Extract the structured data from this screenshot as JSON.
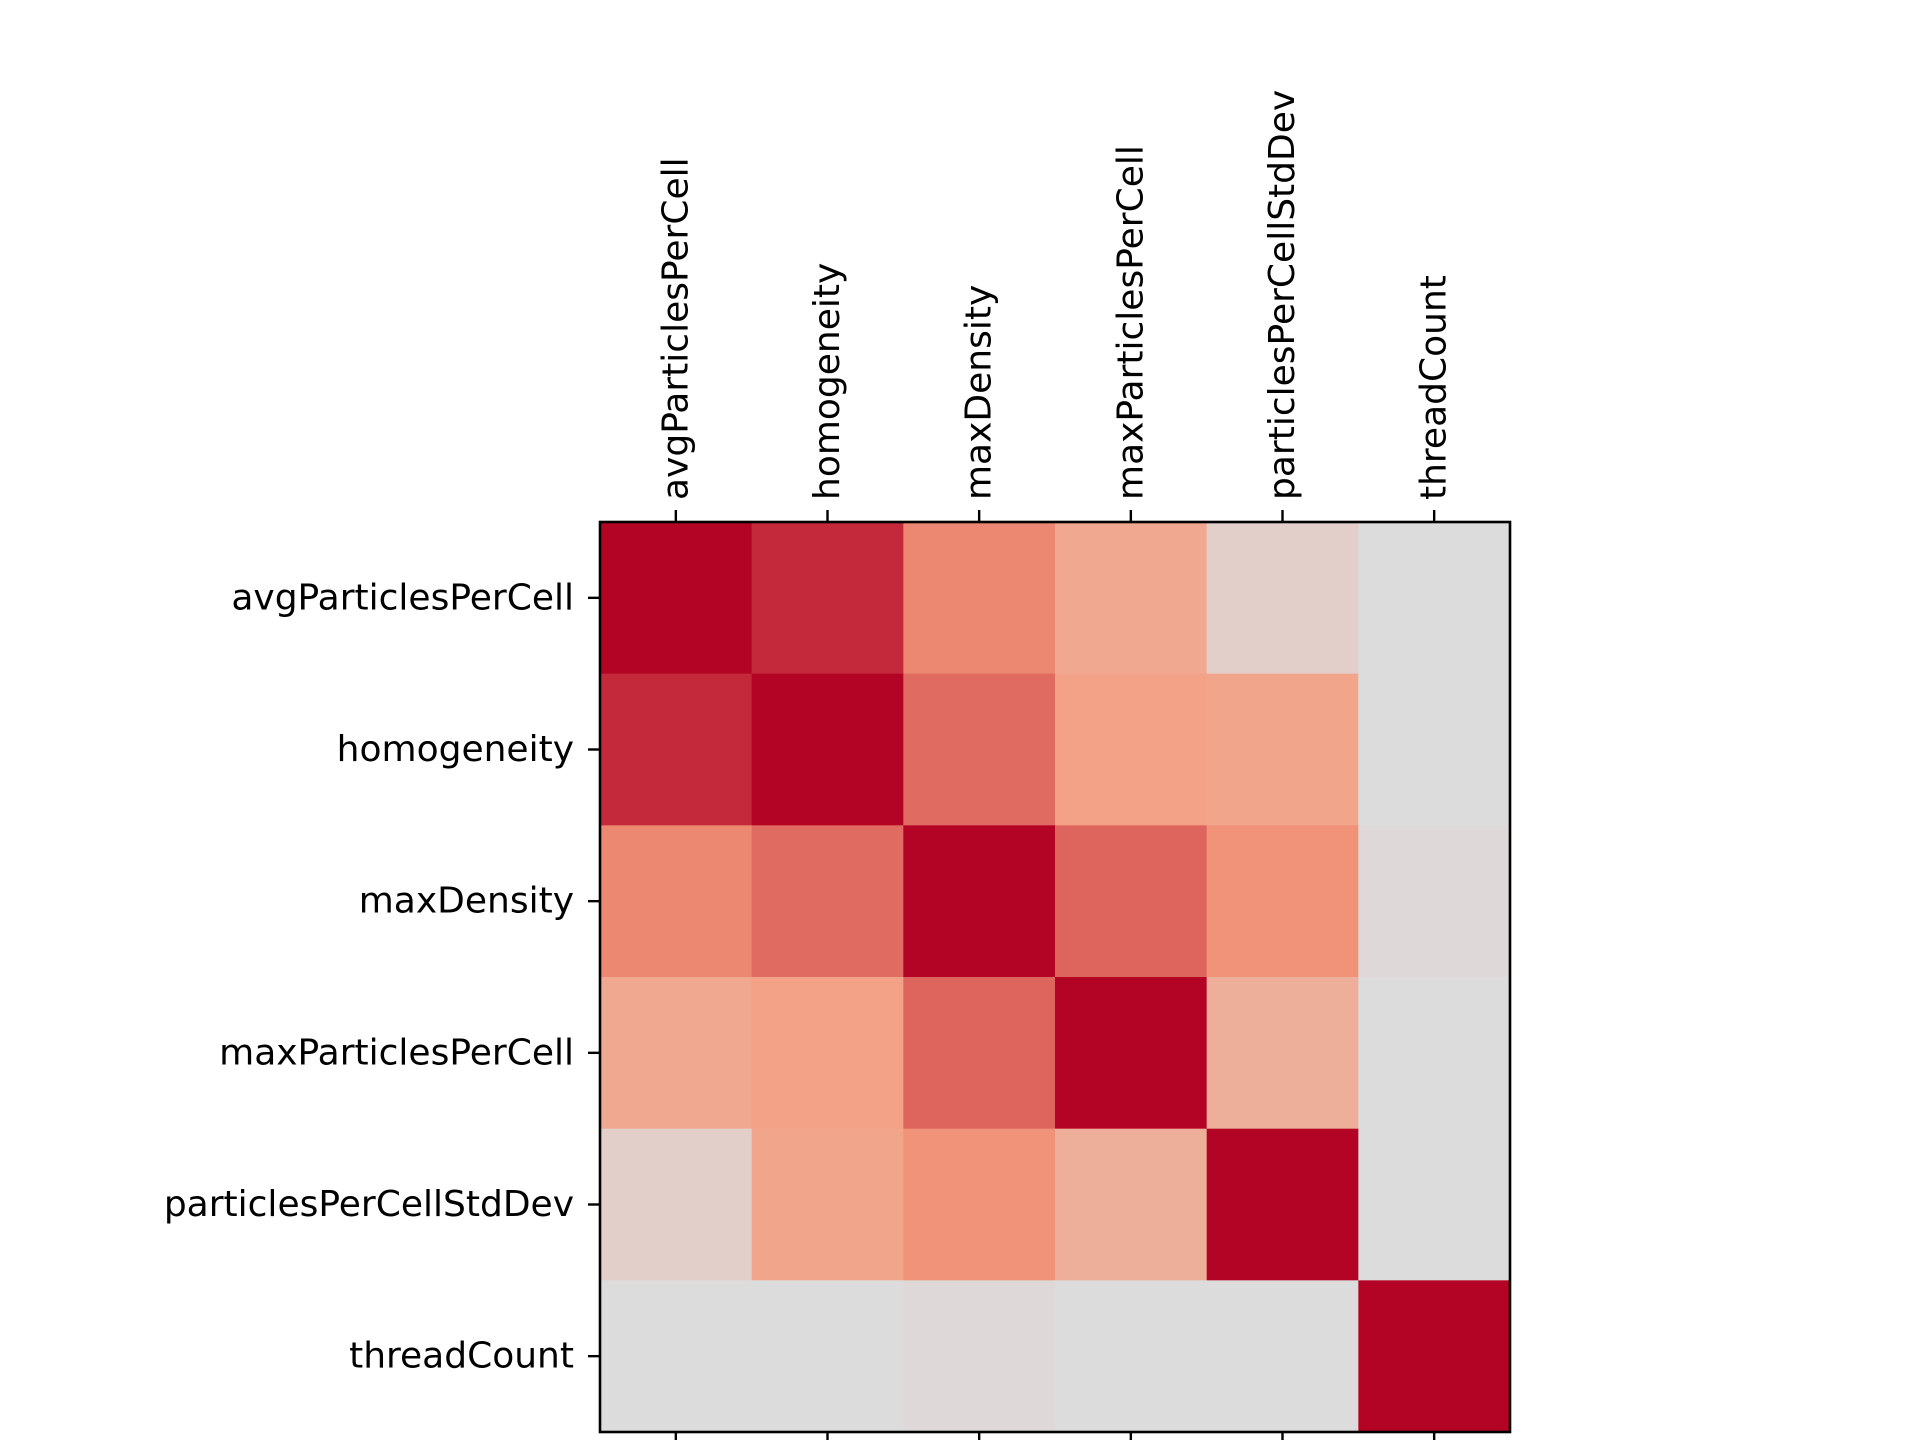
{
  "chart_data": {
    "type": "heatmap",
    "title": "",
    "xlabel": "",
    "ylabel": "",
    "x_tick_position": "top",
    "y_tick_position": "left",
    "x_tick_rotation": "vertical",
    "colormap": "coolwarm",
    "value_range": [
      -1,
      1
    ],
    "colorbar": false,
    "grid": false,
    "categories": [
      "avgParticlesPerCell",
      "homogeneity",
      "maxDensity",
      "maxParticlesPerCell",
      "particlesPerCellStdDev",
      "threadCount"
    ],
    "matrix": [
      [
        1.0,
        0.88,
        0.57,
        0.4,
        0.1,
        0.0
      ],
      [
        0.88,
        1.0,
        0.66,
        0.45,
        0.42,
        0.0
      ],
      [
        0.57,
        0.66,
        1.0,
        0.68,
        0.53,
        0.02
      ],
      [
        0.4,
        0.45,
        0.68,
        1.0,
        0.35,
        0.0
      ],
      [
        0.1,
        0.42,
        0.53,
        0.35,
        1.0,
        0.0
      ],
      [
        0.0,
        0.0,
        0.02,
        0.0,
        0.0,
        1.0
      ]
    ]
  }
}
